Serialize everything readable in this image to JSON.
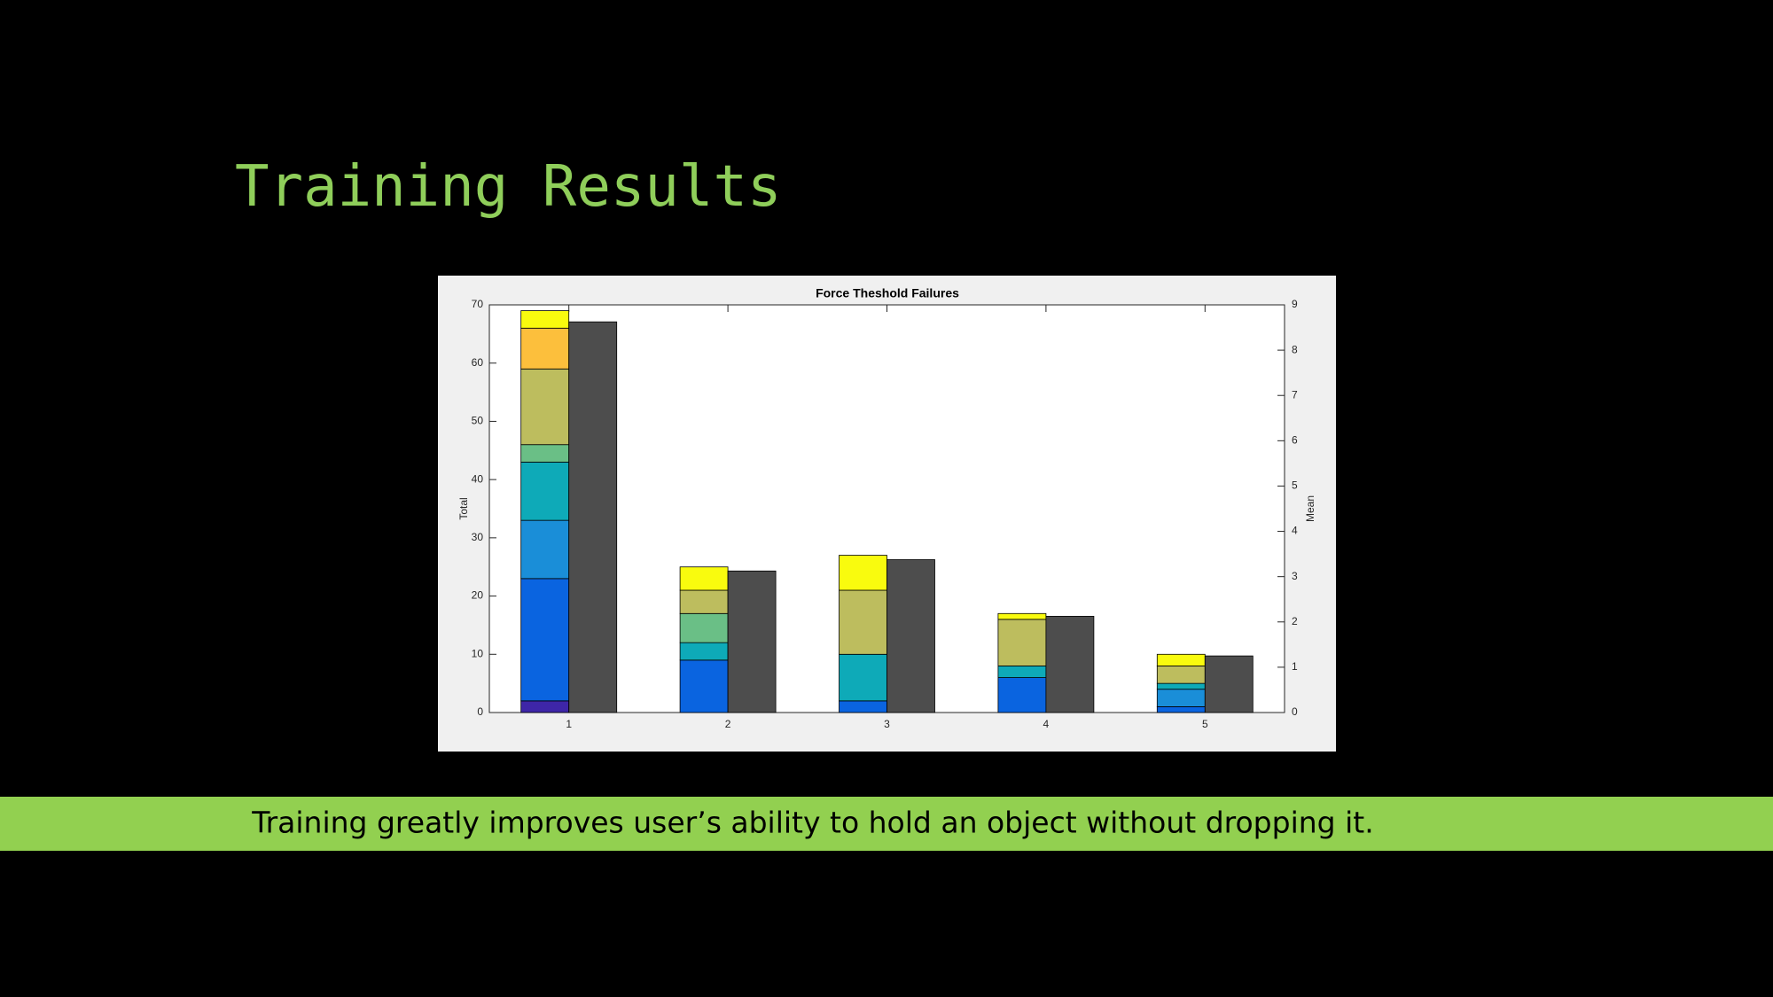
{
  "slide": {
    "title": "Training Results",
    "caption": "Training greatly improves user’s ability to hold an object without dropping it."
  },
  "chart_data": {
    "type": "bar",
    "title": "Force Theshold Failures",
    "y_label": "Total",
    "y2_label": "Mean",
    "categories": [
      "1",
      "2",
      "3",
      "4",
      "5"
    ],
    "stacked": true,
    "series": [
      {
        "color": "#3e26a8",
        "values": [
          2,
          0,
          0,
          0,
          0
        ]
      },
      {
        "color": "#0a64e0",
        "values": [
          21,
          9,
          2,
          6,
          1
        ]
      },
      {
        "color": "#1a8ed8",
        "values": [
          10,
          0,
          0,
          0,
          3
        ]
      },
      {
        "color": "#0eaab8",
        "values": [
          10,
          3,
          8,
          2,
          1
        ]
      },
      {
        "color": "#6abf86",
        "values": [
          3,
          5,
          0,
          0,
          0
        ]
      },
      {
        "color": "#bdbd5e",
        "values": [
          13,
          4,
          11,
          8,
          3
        ]
      },
      {
        "color": "#fcbf3c",
        "values": [
          7,
          0,
          0,
          0,
          0
        ]
      },
      {
        "color": "#f9fb0e",
        "values": [
          3,
          4,
          6,
          1,
          2
        ]
      },
      {
        "color": "#4d4d4d",
        "axis": "y2",
        "values": [
          8.625,
          3.125,
          3.375,
          2.125,
          1.25
        ]
      }
    ],
    "ylim": [
      0,
      70
    ],
    "yticks": [
      0,
      10,
      20,
      30,
      40,
      50,
      60,
      70
    ],
    "y2lim": [
      0,
      9
    ],
    "y2ticks": [
      0,
      1,
      2,
      3,
      4,
      5,
      6,
      7,
      8,
      9
    ]
  }
}
